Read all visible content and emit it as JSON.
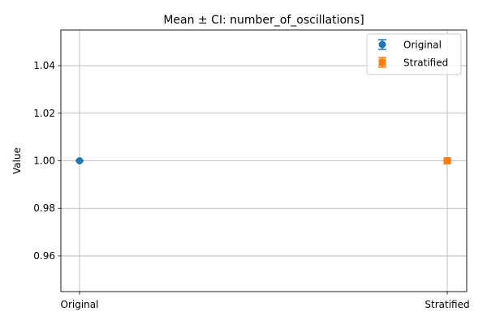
{
  "chart_data": {
    "type": "scatter",
    "title": "Mean ± CI: number_of_oscillations]",
    "xlabel": "",
    "ylabel": "Value",
    "categories": [
      "Original",
      "Stratified"
    ],
    "x_tick_labels": [
      "Original",
      "Stratified"
    ],
    "ylim": [
      0.945,
      1.055
    ],
    "y_ticks": [
      0.96,
      0.98,
      1.0,
      1.02,
      1.04
    ],
    "y_tick_labels": [
      "0.96",
      "0.98",
      "1.00",
      "1.02",
      "1.04"
    ],
    "grid": true,
    "legend_position": "upper-right",
    "series": [
      {
        "name": "Original",
        "category": "Original",
        "value": 1.0,
        "ci_low": 1.0,
        "ci_high": 1.0,
        "marker": "circle",
        "color": "#1f77b4"
      },
      {
        "name": "Stratified",
        "category": "Stratified",
        "value": 1.0,
        "ci_low": 1.0,
        "ci_high": 1.0,
        "marker": "square",
        "color": "#ff7f0e"
      }
    ]
  }
}
